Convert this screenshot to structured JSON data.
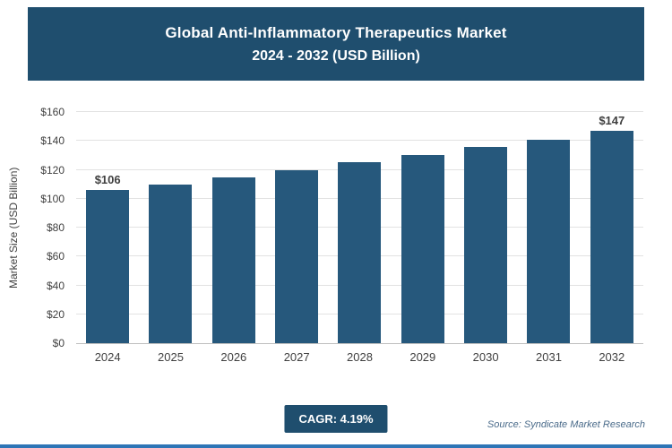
{
  "colors": {
    "banner": "#1F4E6E",
    "bar": "#26587C",
    "badge": "#1F4E6E",
    "accent_line": "#2E75B6",
    "gridline": "#e2e2e2"
  },
  "footer": {
    "cagr_label": "CAGR: 4.19%",
    "source": "Source: Syndicate Market Research"
  },
  "chart_data": {
    "type": "bar",
    "title": "Global Anti-Inflammatory Therapeutics Market",
    "subtitle": "2024 - 2032 (USD Billion)",
    "ylabel": "Market Size (USD Billion)",
    "categories": [
      "2024",
      "2025",
      "2026",
      "2027",
      "2028",
      "2029",
      "2030",
      "2031",
      "2032"
    ],
    "values": [
      106,
      110,
      115,
      120,
      125,
      130,
      136,
      141,
      147
    ],
    "point_labels": [
      "$106",
      null,
      null,
      null,
      null,
      null,
      null,
      null,
      "$147"
    ],
    "ylim": [
      0,
      160
    ],
    "yticks": [
      0,
      20,
      40,
      60,
      80,
      100,
      120,
      140,
      160
    ],
    "ytick_labels": [
      "$0",
      "$20",
      "$40",
      "$60",
      "$80",
      "$100",
      "$120",
      "$140",
      "$160"
    ],
    "grid": "horizontal",
    "legend": "none"
  }
}
